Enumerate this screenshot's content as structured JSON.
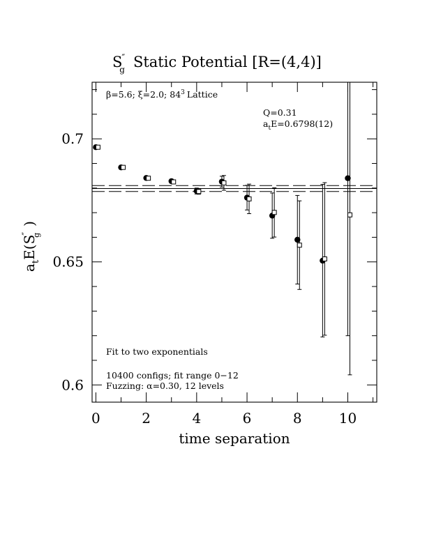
{
  "chart_data": {
    "type": "scatter",
    "title_main": "S",
    "title_sub": "g",
    "title_sup": "″",
    "title_rest": "Static Potential [R=(4,4)]",
    "xlabel": "time separation",
    "ylabel_main": "a",
    "ylabel_sub": "t",
    "ylabel_E": "E(S",
    "ylabel_sup": "″",
    "ylabel_sub2": "g",
    "ylabel_close": ")",
    "xlim": [
      -0.15,
      11.15
    ],
    "ylim": [
      0.593,
      0.723
    ],
    "x_ticks": [
      0,
      2,
      4,
      6,
      8,
      10
    ],
    "x_tick_labels": [
      "0",
      "2",
      "4",
      "6",
      "8",
      "10"
    ],
    "y_ticks": [
      0.6,
      0.65,
      0.7
    ],
    "y_tick_labels": [
      "0.6",
      "0.65",
      "0.7"
    ],
    "x_minor_step": 1,
    "y_minor_step": 0.01,
    "lattice_note": {
      "beta": "β=5.6;",
      "xi": "ξ=2.0;",
      "size": "84",
      "size_sup": "3",
      "rest": "Lattice"
    },
    "fit_q": "Q=0.31",
    "fit_e_a": "a",
    "fit_e_sub": "t",
    "fit_e_rest": "E=0.6798(12)",
    "fit_value": 0.6798,
    "fit_band": [
      0.6786,
      0.681
    ],
    "note_fit": "Fit to two exponentials",
    "note_configs": "10400 configs; fit range 0−12",
    "note_fuzz": "Fuzzing: α=0.30, 12 levels",
    "series": [
      {
        "marker": "filled-circle",
        "x": [
          0,
          1,
          2,
          3,
          4,
          5,
          6,
          7,
          8,
          9,
          10
        ],
        "y": [
          0.6966,
          0.6884,
          0.6841,
          0.6828,
          0.6788,
          0.6826,
          0.6761,
          0.6688,
          0.659,
          0.6505,
          0.684
        ],
        "err": [
          0.0005,
          0.0006,
          0.0006,
          0.0008,
          0.0012,
          0.0022,
          0.005,
          0.0092,
          0.018,
          0.031,
          0.064
        ]
      },
      {
        "marker": "open-square",
        "x": [
          0,
          1,
          2,
          3,
          4,
          5,
          6,
          7,
          8,
          9,
          10
        ],
        "y": [
          0.6966,
          0.6884,
          0.684,
          0.6825,
          0.6786,
          0.6821,
          0.6756,
          0.6701,
          0.6568,
          0.6512,
          0.6691
        ],
        "err": [
          0.0004,
          0.0005,
          0.0006,
          0.0008,
          0.0011,
          0.003,
          0.006,
          0.01,
          0.018,
          0.031,
          0.065
        ]
      }
    ]
  }
}
